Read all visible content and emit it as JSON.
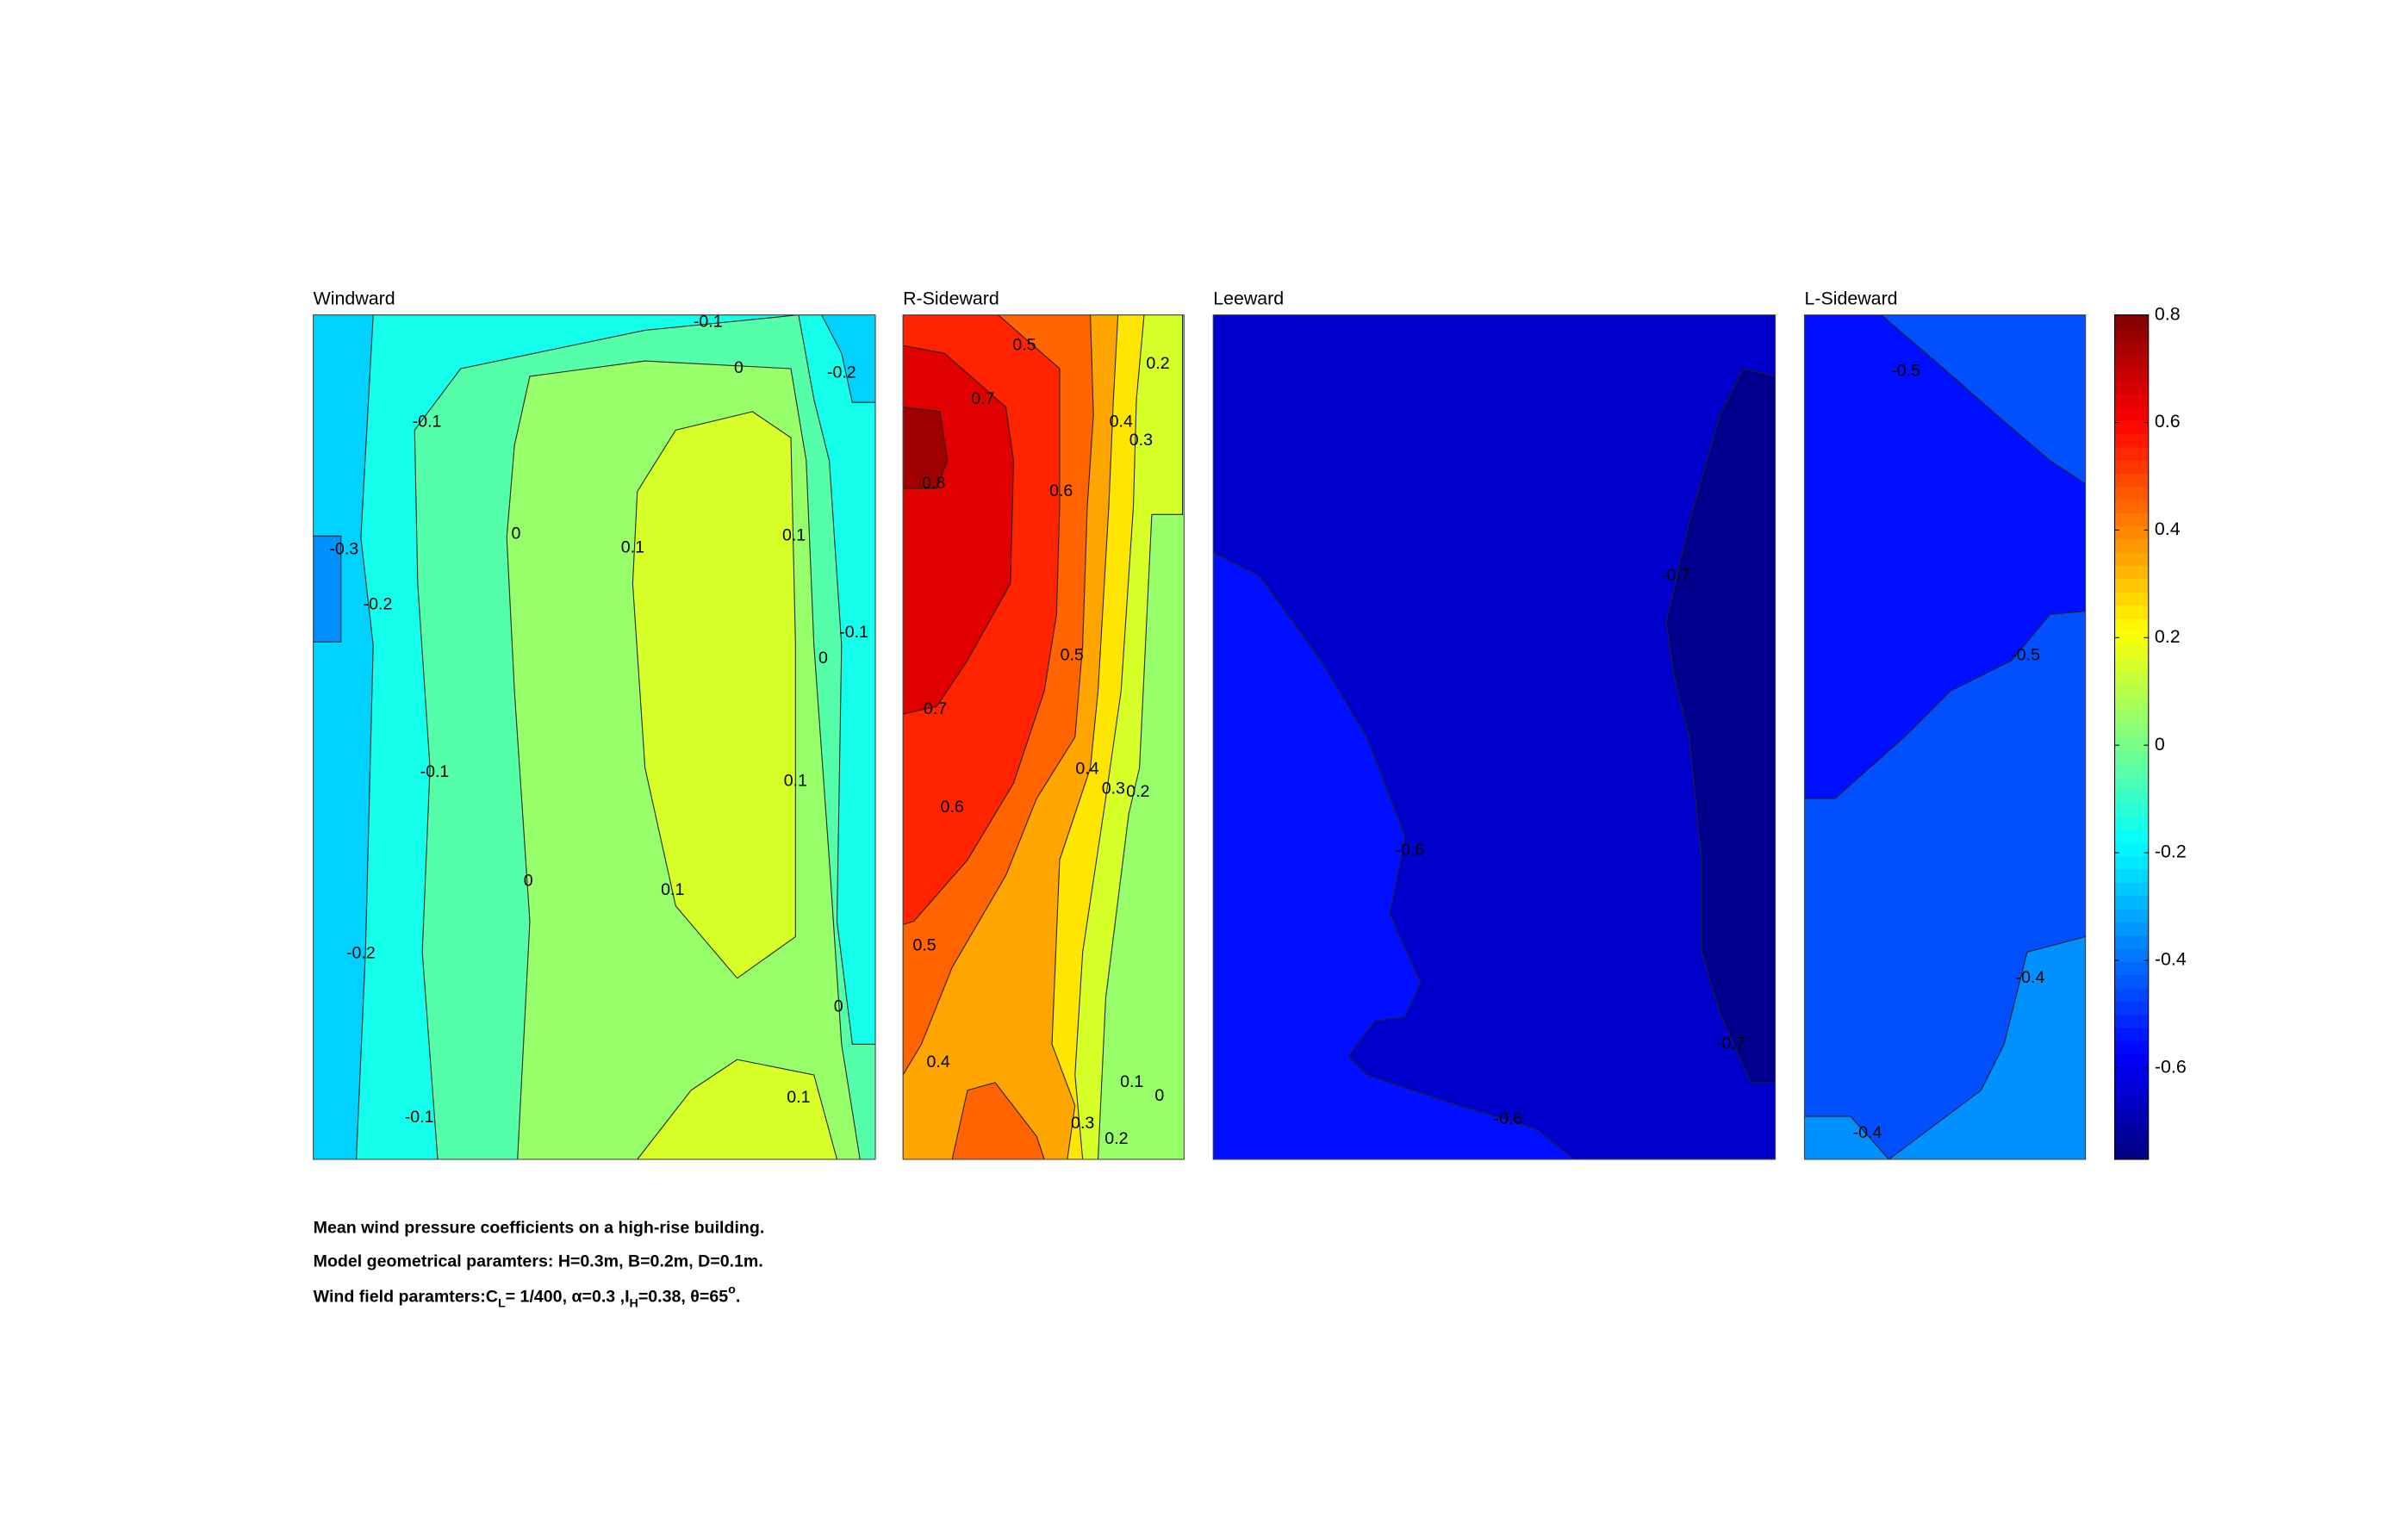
{
  "chart_data": [
    {
      "type": "contour",
      "title": "Windward",
      "regions": [
        -0.25,
        -0.35,
        -0.15,
        -0.05,
        0.05,
        0.15
      ],
      "contour_labels": [
        -0.1,
        -0.2,
        0,
        -0.1,
        -0.3,
        0,
        0.1,
        0.1,
        -0.2,
        -0.1,
        0,
        -0.1,
        0.1,
        0,
        0.1,
        -0.2,
        0,
        0.1,
        -0.1
      ]
    },
    {
      "type": "contour",
      "title": "R-Sideward",
      "regions": [
        0.05,
        0.15,
        0.25,
        0.35,
        0.45,
        0.55,
        0.65,
        0.75
      ],
      "contour_labels": [
        0.5,
        0.2,
        0.7,
        0.4,
        0.3,
        0.8,
        0.6,
        0.5,
        0.7,
        0.4,
        0.3,
        0.2,
        0.6,
        0.5,
        0.4,
        0.1,
        0,
        0.3,
        0.2
      ]
    },
    {
      "type": "contour",
      "title": "Leeward",
      "regions": [
        -0.65,
        -0.55,
        -0.75
      ],
      "contour_labels": [
        -0.7,
        -0.6,
        -0.7,
        -0.6
      ]
    },
    {
      "type": "contour",
      "title": "L-Sideward",
      "regions": [
        -0.45,
        -0.55,
        -0.35
      ],
      "contour_labels": [
        -0.5,
        -0.5,
        -0.4,
        -0.4
      ]
    }
  ],
  "colorbar": {
    "colormap": "jet",
    "clim": [
      -0.77,
      0.8
    ],
    "ticks": [
      0.8,
      0.6,
      0.4,
      0.2,
      0,
      -0.2,
      -0.4,
      -0.6
    ]
  },
  "caption": {
    "line1": "Mean wind pressure coefficients on a high-rise building.",
    "line2": "Model geometrical paramters: H=0.3m, B=0.2m, D=0.1m.",
    "line3": [
      "Wind field paramters:C",
      "L",
      "= 1/400, α=0.3 ,I",
      "H",
      "=0.38, θ=65",
      "o",
      "."
    ]
  }
}
